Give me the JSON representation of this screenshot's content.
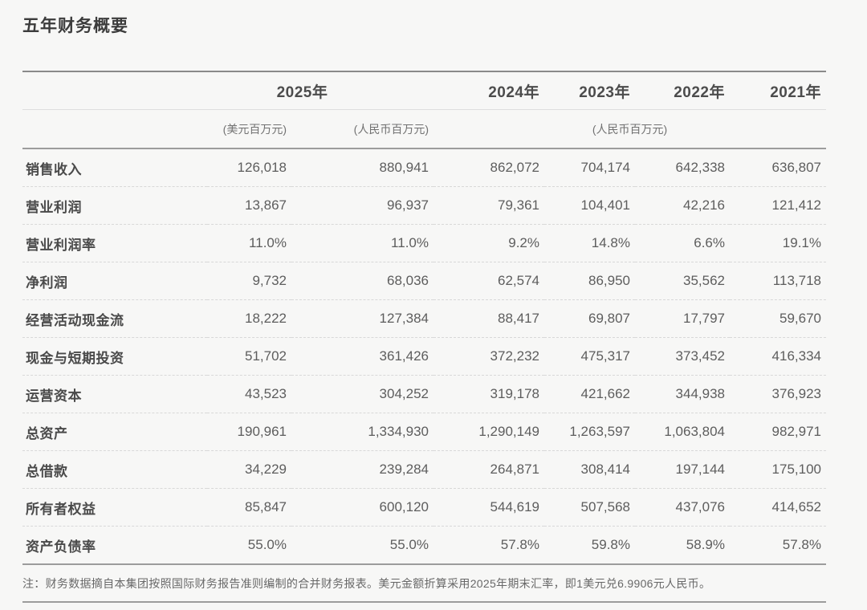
{
  "title": "五年财务概要",
  "table": {
    "years": [
      "2025年",
      "2024年",
      "2023年",
      "2022年",
      "2021年"
    ],
    "units": [
      "(美元百万元)",
      "(人民币百万元)",
      "(人民币百万元)"
    ],
    "rows": [
      {
        "label": "销售收入",
        "values": [
          "126,018",
          "880,941",
          "862,072",
          "704,174",
          "642,338",
          "636,807"
        ]
      },
      {
        "label": "营业利润",
        "values": [
          "13,867",
          "96,937",
          "79,361",
          "104,401",
          "42,216",
          "121,412"
        ]
      },
      {
        "label": "营业利润率",
        "values": [
          "11.0%",
          "11.0%",
          "9.2%",
          "14.8%",
          "6.6%",
          "19.1%"
        ]
      },
      {
        "label": "净利润",
        "values": [
          "9,732",
          "68,036",
          "62,574",
          "86,950",
          "35,562",
          "113,718"
        ]
      },
      {
        "label": "经营活动现金流",
        "values": [
          "18,222",
          "127,384",
          "88,417",
          "69,807",
          "17,797",
          "59,670"
        ]
      },
      {
        "label": "现金与短期投资",
        "values": [
          "51,702",
          "361,426",
          "372,232",
          "475,317",
          "373,452",
          "416,334"
        ]
      },
      {
        "label": "运营资本",
        "values": [
          "43,523",
          "304,252",
          "319,178",
          "421,662",
          "344,938",
          "376,923"
        ]
      },
      {
        "label": "总资产",
        "values": [
          "190,961",
          "1,334,930",
          "1,290,149",
          "1,263,597",
          "1,063,804",
          "982,971"
        ]
      },
      {
        "label": "总借款",
        "values": [
          "34,229",
          "239,284",
          "264,871",
          "308,414",
          "197,144",
          "175,100"
        ]
      },
      {
        "label": "所有者权益",
        "values": [
          "85,847",
          "600,120",
          "544,619",
          "507,568",
          "437,076",
          "414,652"
        ]
      },
      {
        "label": "资产负债率",
        "values": [
          "55.0%",
          "55.0%",
          "57.8%",
          "59.8%",
          "58.9%",
          "57.8%"
        ]
      }
    ]
  },
  "note": "注：财务数据摘自本集团按照国际财务报告准则编制的合并财务报表。美元金额折算采用2025年期末汇率，即1美元兑6.9906元人民币。",
  "colors": {
    "background": "#f7f7f6",
    "title_text": "#3c3c3c",
    "header_text": "#4c4c4c",
    "unit_text": "#717171",
    "label_text": "#4a4a4a",
    "value_text": "#5d5d5d",
    "note_text": "#686868",
    "rule_strong": "#8a8a8a",
    "rule_medium": "#9c9c9c",
    "rule_light": "#dedede",
    "row_separator": "#d8d8d8"
  }
}
